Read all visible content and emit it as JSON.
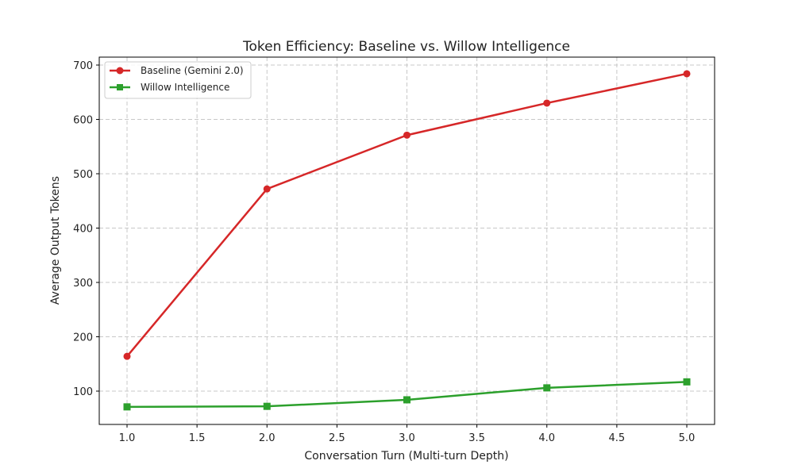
{
  "chart_data": {
    "type": "line",
    "title": "Token Efficiency: Baseline vs. Willow Intelligence",
    "xlabel": "Conversation Turn (Multi-turn Depth)",
    "ylabel": "Average Output Tokens",
    "x": [
      1,
      2,
      3,
      4,
      5
    ],
    "xlim": [
      0.8,
      5.2
    ],
    "ylim": [
      40,
      720
    ],
    "xticks": [
      "1.0",
      "1.5",
      "2.0",
      "2.5",
      "3.0",
      "3.5",
      "4.0",
      "4.5",
      "5.0"
    ],
    "yticks": [
      "100",
      "200",
      "300",
      "400",
      "500",
      "600",
      "700"
    ],
    "grid": true,
    "legend_position": "upper left",
    "series": [
      {
        "name": "Baseline (Gemini 2.0)",
        "values": [
          164,
          472,
          571,
          630,
          684
        ],
        "color": "#d62728",
        "marker": "circle"
      },
      {
        "name": "Willow Intelligence",
        "values": [
          71,
          72,
          84,
          106,
          117
        ],
        "color": "#2ca02c",
        "marker": "square"
      }
    ]
  }
}
